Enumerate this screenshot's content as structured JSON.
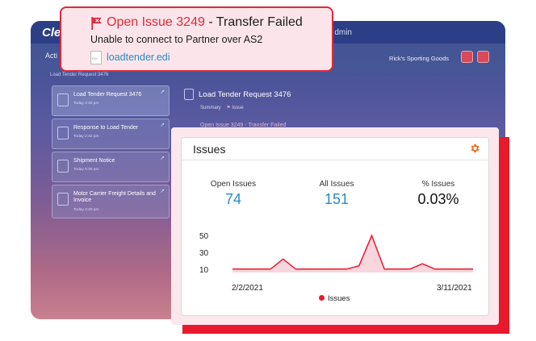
{
  "alert": {
    "title_highlight": "Open Issue 3249",
    "title_rest": " - Transfer Failed",
    "message": "Unable to connect to Partner over AS2",
    "file_link": "loadtender.edi",
    "file_icon_text": "EDI",
    "accent_color": "#e0293b"
  },
  "background_app": {
    "logo": "Cle",
    "user_label": "dmin",
    "active_tab": "Acti",
    "partner": "Rick's Sporting Goods",
    "breadcrumb": "Load Tender Request 3476",
    "documents": [
      {
        "title": "Load Tender Request 3476",
        "date": "Today 2:40 pm"
      },
      {
        "title": "Response to Load Tender",
        "date": "Today 2:42 pm"
      },
      {
        "title": "Shipment Notice",
        "date": "Today 5:30 pm"
      },
      {
        "title": "Motor Carrier Freight Details and Invoice",
        "date": "Today 2:40 pm"
      }
    ],
    "detail_title": "Load Tender Request 3476",
    "detail_tabs": [
      "Summary",
      "Issue"
    ],
    "detail_issue": "Open Issue 3249 - Transfer Failed"
  },
  "issues_panel": {
    "title": "Issues",
    "stats": [
      {
        "label": "Open Issues",
        "value": "74"
      },
      {
        "label": "All Issues",
        "value": "151"
      },
      {
        "label": "% Issues",
        "value": "0.03%"
      }
    ],
    "legend": "Issues"
  },
  "chart_data": {
    "type": "area",
    "x_start_label": "2/2/2021",
    "x_end_label": "3/11/2021",
    "y_ticks": [
      "50",
      "30",
      "10"
    ],
    "ylim": [
      0,
      60
    ],
    "series": [
      {
        "name": "Issues",
        "color": "#e8192c",
        "values": [
          5,
          5,
          5,
          5,
          20,
          5,
          5,
          5,
          5,
          5,
          10,
          55,
          5,
          5,
          5,
          13,
          5,
          5,
          5,
          5
        ]
      }
    ]
  }
}
